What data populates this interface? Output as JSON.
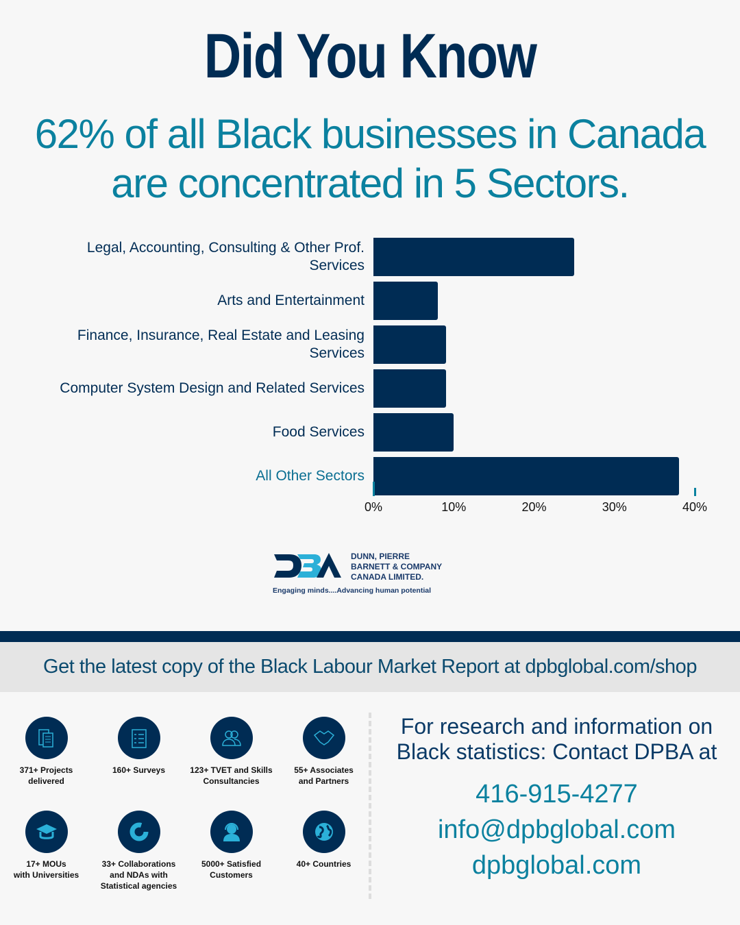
{
  "header": {
    "title": "Did You Know",
    "subtitle_line1": "62% of all Black businesses in Canada",
    "subtitle_line2": "are concentrated in 5 Sectors."
  },
  "chart_data": {
    "type": "bar",
    "orientation": "horizontal",
    "categories": [
      "Legal, Accounting, Consulting & Other Prof. Services",
      "Arts and Entertainment",
      "Finance, Insurance, Real Estate and Leasing Services",
      "Computer System Design and Related Services",
      "Food Services",
      "All Other Sectors"
    ],
    "label_lines": [
      [
        "Legal, Accounting, Consulting & Other Prof.",
        "Services"
      ],
      [
        "Arts and Entertainment"
      ],
      [
        "Finance, Insurance, Real Estate and Leasing",
        "Services"
      ],
      [
        "Computer System Design and Related Services"
      ],
      [
        "Food Services"
      ],
      [
        "All Other Sectors"
      ]
    ],
    "values": [
      25,
      8,
      9,
      9,
      10,
      38
    ],
    "xlim": [
      0,
      40
    ],
    "ticks": [
      "0%",
      "10%",
      "20%",
      "30%",
      "40%"
    ],
    "tick_values": [
      0,
      10,
      20,
      30,
      40
    ],
    "xlabel": "",
    "ylabel": "",
    "colors": {
      "bar": "#002c54",
      "axis": "#0b819f"
    }
  },
  "logo": {
    "mark": "DBA",
    "name_lines": [
      "DUNN, PIERRE",
      "BARNETT & COMPANY",
      "CANADA LIMITED."
    ],
    "tagline": "Engaging minds....Advancing human potential"
  },
  "banner": "Get the latest copy of the Black Labour Market Report at dpbglobal.com/shop",
  "stats": [
    {
      "icon": "documents-icon",
      "lines": [
        "371+ Projects",
        "delivered"
      ]
    },
    {
      "icon": "clipboard-icon",
      "lines": [
        "160+ Surveys"
      ]
    },
    {
      "icon": "people-icon",
      "lines": [
        "123+ TVET and Skills",
        "Consultancies"
      ]
    },
    {
      "icon": "handshake-icon",
      "lines": [
        "55+ Associates",
        "and Partners"
      ]
    },
    {
      "icon": "graduation-cap-icon",
      "lines": [
        "17+ MOUs",
        "with Universities"
      ]
    },
    {
      "icon": "donut-chart-icon",
      "lines": [
        "33+ Collaborations",
        "and NDAs with",
        "Statistical agencies"
      ]
    },
    {
      "icon": "headset-icon",
      "lines": [
        "5000+ Satisfied",
        "Customers"
      ]
    },
    {
      "icon": "globe-icon",
      "lines": [
        "40+ Countries"
      ]
    }
  ],
  "contact": {
    "heading_line1": "For research and information on",
    "heading_line2": "Black statistics: Contact DPBA at",
    "phone": "416-915-4277",
    "email": "info@dpbglobal.com",
    "website": "dpbglobal.com"
  }
}
